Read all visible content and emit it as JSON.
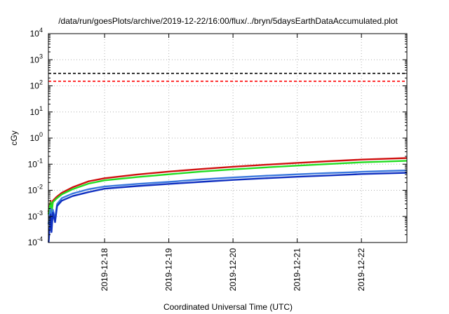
{
  "chart_data": {
    "type": "line",
    "title": "/data/run/goesPlots/archive/2019-12-22/16:00/flux/../bryn/5daysEarthDataAccumulated.plot",
    "xlabel": "Coordinated Universal Time (UTC)",
    "ylabel": "cGy",
    "x_scale": "time",
    "y_scale": "log",
    "xlim": [
      "2019-12-17T03:00",
      "2019-12-22T17:00"
    ],
    "ylim": [
      0.0001,
      10000
    ],
    "grid": true,
    "legend": "none",
    "x_ticks": [
      "2019-12-18",
      "2019-12-19",
      "2019-12-20",
      "2019-12-21",
      "2019-12-22"
    ],
    "y_ticks": [
      {
        "base": "10",
        "exp": "-4",
        "value": 0.0001
      },
      {
        "base": "10",
        "exp": "-3",
        "value": 0.001
      },
      {
        "base": "10",
        "exp": "-2",
        "value": 0.01
      },
      {
        "base": "10",
        "exp": "-1",
        "value": 0.1
      },
      {
        "base": "10",
        "exp": "0",
        "value": 1
      },
      {
        "base": "10",
        "exp": "1",
        "value": 10
      },
      {
        "base": "10",
        "exp": "2",
        "value": 100
      },
      {
        "base": "10",
        "exp": "3",
        "value": 1000
      },
      {
        "base": "10",
        "exp": "4",
        "value": 10000
      }
    ],
    "thresholds": [
      {
        "value": 300,
        "color": "#000000",
        "style": "dashed"
      },
      {
        "value": 150,
        "color": "#ff0000",
        "style": "dashed"
      }
    ],
    "series": [
      {
        "color": "#d01010",
        "points": [
          [
            "2019-12-17T03:00",
            0.0015
          ],
          [
            "2019-12-17T03:50",
            0.004
          ],
          [
            "2019-12-17T04:15",
            0.0018
          ],
          [
            "2019-12-17T04:40",
            0.004
          ],
          [
            "2019-12-17T06:00",
            0.0055
          ],
          [
            "2019-12-17T08:00",
            0.008
          ],
          [
            "2019-12-17T12:00",
            0.013
          ],
          [
            "2019-12-17T18:00",
            0.022
          ],
          [
            "2019-12-18T00:00",
            0.029
          ],
          [
            "2019-12-18T12:00",
            0.04
          ],
          [
            "2019-12-19T00:00",
            0.052
          ],
          [
            "2019-12-19T12:00",
            0.065
          ],
          [
            "2019-12-20T00:00",
            0.08
          ],
          [
            "2019-12-20T12:00",
            0.095
          ],
          [
            "2019-12-21T00:00",
            0.112
          ],
          [
            "2019-12-21T12:00",
            0.13
          ],
          [
            "2019-12-22T00:00",
            0.15
          ],
          [
            "2019-12-22T17:00",
            0.172
          ]
        ]
      },
      {
        "color": "#22dd22",
        "points": [
          [
            "2019-12-17T03:00",
            0.0012
          ],
          [
            "2019-12-17T03:50",
            0.0035
          ],
          [
            "2019-12-17T04:15",
            0.0015
          ],
          [
            "2019-12-17T04:40",
            0.0035
          ],
          [
            "2019-12-17T06:00",
            0.0048
          ],
          [
            "2019-12-17T08:00",
            0.007
          ],
          [
            "2019-12-17T12:00",
            0.011
          ],
          [
            "2019-12-17T18:00",
            0.018
          ],
          [
            "2019-12-18T00:00",
            0.024
          ],
          [
            "2019-12-18T12:00",
            0.032
          ],
          [
            "2019-12-19T00:00",
            0.041
          ],
          [
            "2019-12-19T12:00",
            0.052
          ],
          [
            "2019-12-20T00:00",
            0.063
          ],
          [
            "2019-12-20T12:00",
            0.075
          ],
          [
            "2019-12-21T00:00",
            0.088
          ],
          [
            "2019-12-21T12:00",
            0.102
          ],
          [
            "2019-12-22T00:00",
            0.118
          ],
          [
            "2019-12-22T17:00",
            0.135
          ]
        ]
      },
      {
        "color": "#3a78dd",
        "points": [
          [
            "2019-12-17T03:00",
            0.0005
          ],
          [
            "2019-12-17T03:50",
            0.002
          ],
          [
            "2019-12-17T04:10",
            0.0006
          ],
          [
            "2019-12-17T04:40",
            0.0018
          ],
          [
            "2019-12-17T05:30",
            0.0008
          ],
          [
            "2019-12-17T06:15",
            0.003
          ],
          [
            "2019-12-17T08:00",
            0.005
          ],
          [
            "2019-12-17T12:00",
            0.0075
          ],
          [
            "2019-12-17T18:00",
            0.011
          ],
          [
            "2019-12-18T00:00",
            0.014
          ],
          [
            "2019-12-18T12:00",
            0.0175
          ],
          [
            "2019-12-19T00:00",
            0.021
          ],
          [
            "2019-12-19T12:00",
            0.026
          ],
          [
            "2019-12-20T00:00",
            0.031
          ],
          [
            "2019-12-20T12:00",
            0.036
          ],
          [
            "2019-12-21T00:00",
            0.041
          ],
          [
            "2019-12-21T12:00",
            0.046
          ],
          [
            "2019-12-21T20:00",
            0.049
          ],
          [
            "2019-12-22T00:00",
            0.051
          ],
          [
            "2019-12-22T17:00",
            0.058
          ]
        ]
      },
      {
        "color": "#1030c0",
        "points": [
          [
            "2019-12-17T03:05",
            0.0001
          ],
          [
            "2019-12-17T03:50",
            0.0012
          ],
          [
            "2019-12-17T04:10",
            0.00025
          ],
          [
            "2019-12-17T04:40",
            0.0014
          ],
          [
            "2019-12-17T05:30",
            0.0006
          ],
          [
            "2019-12-17T06:15",
            0.0025
          ],
          [
            "2019-12-17T08:00",
            0.004
          ],
          [
            "2019-12-17T12:00",
            0.006
          ],
          [
            "2019-12-17T18:00",
            0.0085
          ],
          [
            "2019-12-18T00:00",
            0.0115
          ],
          [
            "2019-12-18T12:00",
            0.0145
          ],
          [
            "2019-12-19T00:00",
            0.0175
          ],
          [
            "2019-12-19T12:00",
            0.021
          ],
          [
            "2019-12-20T00:00",
            0.025
          ],
          [
            "2019-12-20T12:00",
            0.029
          ],
          [
            "2019-12-21T00:00",
            0.033
          ],
          [
            "2019-12-21T12:00",
            0.037
          ],
          [
            "2019-12-21T20:00",
            0.04
          ],
          [
            "2019-12-22T00:00",
            0.042
          ],
          [
            "2019-12-22T17:00",
            0.047
          ]
        ]
      }
    ]
  }
}
